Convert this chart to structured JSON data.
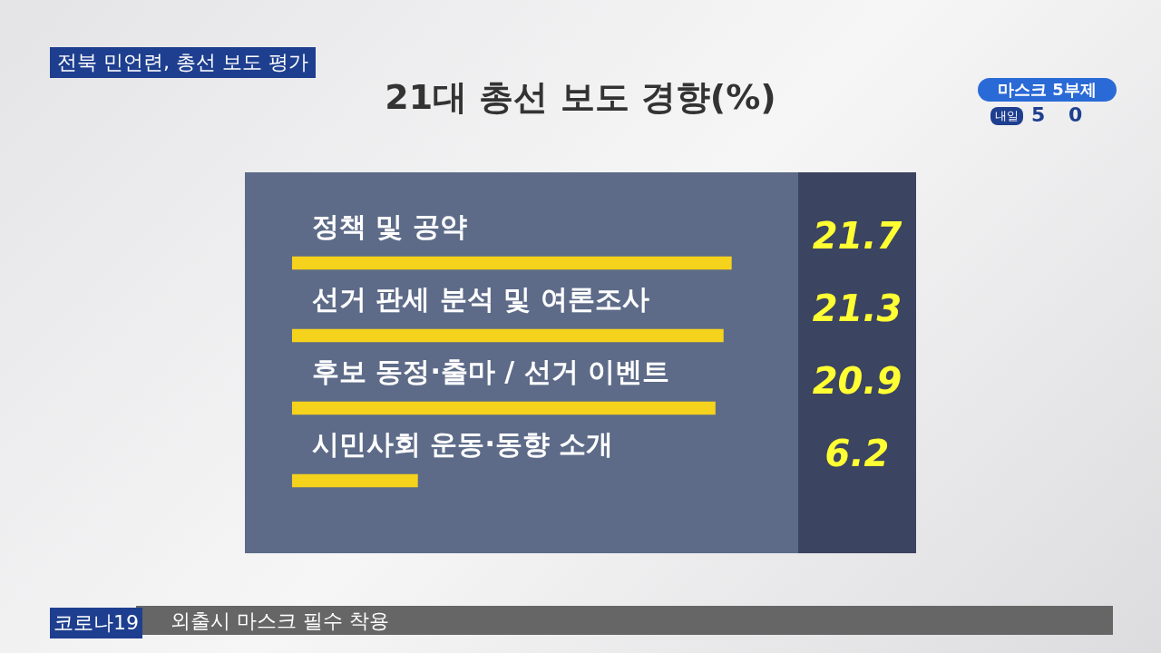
{
  "chart_data": {
    "type": "bar",
    "orientation": "horizontal",
    "title": "21대 총선 보도 경향(%)",
    "categories": [
      "정책 및 공약",
      "선거 판세 분석 및 여론조사",
      "후보 동정·출마 / 선거 이벤트",
      "시민사회 운동·동향 소개"
    ],
    "values": [
      21.7,
      21.3,
      20.9,
      6.2
    ],
    "color": "#f5d21c",
    "data_labels": true,
    "tick_labels": "y",
    "annotations": [
      "전북 민언련, 총선 보도 평가",
      "마스크 5부제",
      "내일",
      "5",
      "0",
      "코로나19",
      "외출시 마스크 필수 착용"
    ]
  }
}
